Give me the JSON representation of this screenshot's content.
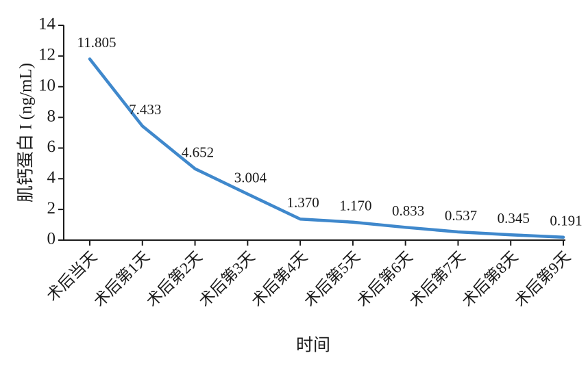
{
  "chart_data": {
    "type": "line",
    "y_label": "肌钙蛋白 I (ng/mL)",
    "x_label": "时间",
    "categories": [
      "术后当天",
      "术后第1天",
      "术后第2天",
      "术后第3天",
      "术后第4天",
      "术后第5天",
      "术后第6天",
      "术后第7天",
      "术后第8天",
      "术后第9天"
    ],
    "series": [
      {
        "name": "肌钙蛋白 I",
        "color": "#3f88cc",
        "values": [
          11.805,
          7.433,
          4.652,
          3.004,
          1.37,
          1.17,
          0.833,
          0.537,
          0.345,
          0.191
        ],
        "value_labels": [
          "11.805",
          "7.433",
          "4.652",
          "3.004",
          "1.370",
          "1.170",
          "0.833",
          "0.537",
          "0.345",
          "0.191"
        ]
      }
    ],
    "ylim": [
      0,
      14
    ],
    "yticks": [
      0,
      2,
      4,
      6,
      8,
      10,
      12,
      14
    ],
    "grid": false
  }
}
